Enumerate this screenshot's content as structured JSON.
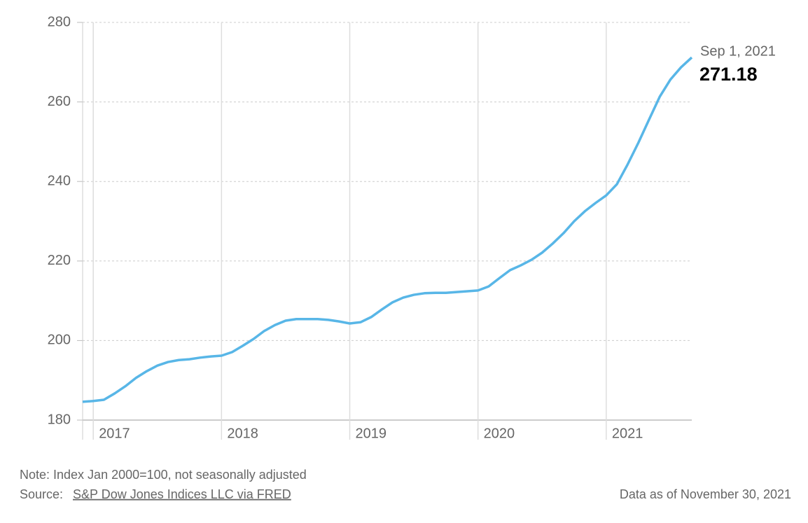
{
  "chart_data": {
    "type": "line",
    "x": [
      2016.917,
      2017,
      2017.083,
      2017.167,
      2017.25,
      2017.333,
      2017.417,
      2017.5,
      2017.583,
      2017.667,
      2017.75,
      2017.833,
      2017.917,
      2018,
      2018.083,
      2018.167,
      2018.25,
      2018.333,
      2018.417,
      2018.5,
      2018.583,
      2018.667,
      2018.75,
      2018.833,
      2018.917,
      2019,
      2019.083,
      2019.167,
      2019.25,
      2019.333,
      2019.417,
      2019.5,
      2019.583,
      2019.667,
      2019.75,
      2019.833,
      2019.917,
      2020,
      2020.083,
      2020.167,
      2020.25,
      2020.333,
      2020.417,
      2020.5,
      2020.583,
      2020.667,
      2020.75,
      2020.833,
      2020.917,
      2021,
      2021.083,
      2021.167,
      2021.25,
      2021.333,
      2021.417,
      2021.5,
      2021.583,
      2021.667
    ],
    "values": [
      184.6,
      184.8,
      185.1,
      186.7,
      188.5,
      190.6,
      192.3,
      193.7,
      194.6,
      195.1,
      195.3,
      195.7,
      196.0,
      196.2,
      197.1,
      198.7,
      200.4,
      202.4,
      203.9,
      205.0,
      205.4,
      205.4,
      205.4,
      205.2,
      204.8,
      204.3,
      204.6,
      205.9,
      207.8,
      209.6,
      210.8,
      211.5,
      211.9,
      212.0,
      212.0,
      212.2,
      212.4,
      212.6,
      213.6,
      215.7,
      217.7,
      218.9,
      220.3,
      222.1,
      224.4,
      227.0,
      230.0,
      232.5,
      234.6,
      236.5,
      239.3,
      244.3,
      249.7,
      255.5,
      261.3,
      265.6,
      268.7,
      271.18
    ],
    "color": "#58b6e7",
    "xlim": [
      2016.917,
      2021.667
    ],
    "xticks": [
      2017,
      2018,
      2019,
      2020,
      2021
    ],
    "ylim": [
      180,
      280
    ],
    "yticks": [
      180,
      200,
      220,
      240,
      260,
      280
    ],
    "grid": true,
    "last_point_label": "Sep 1, 2021"
  },
  "footer": {
    "note": "Note: Index Jan 2000=100, not seasonally adjusted",
    "source_prefix": "Source:",
    "source_link": "S&P Dow Jones Indices LLC via FRED",
    "data_as_of": "Data as of November 30, 2021"
  }
}
